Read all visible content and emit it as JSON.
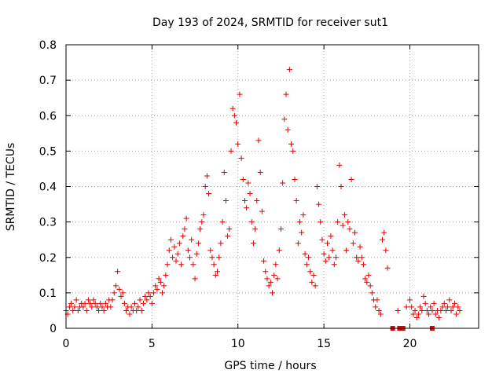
{
  "chart_data": {
    "type": "scatter",
    "title": "Day 193 of 2024, SRMTID for receiver sut1",
    "xlabel": "GPS time / hours",
    "ylabel": "SRMTID / TECUs",
    "xlim": [
      0,
      24
    ],
    "ylim": [
      0,
      0.8
    ],
    "xticks": [
      "0",
      "5",
      "10",
      "15",
      "20"
    ],
    "yticks": [
      "0",
      "0.1",
      "0.2",
      "0.3",
      "0.4",
      "0.5",
      "0.6",
      "0.7",
      "0.8"
    ],
    "grid": true,
    "marker": "plus",
    "color": "#e00000",
    "series": [
      {
        "name": "SRMTID",
        "points": [
          [
            0.0,
            0.05
          ],
          [
            0.1,
            0.04
          ],
          [
            0.2,
            0.06
          ],
          [
            0.3,
            0.07
          ],
          [
            0.4,
            0.05
          ],
          [
            0.5,
            0.06
          ],
          [
            0.6,
            0.08
          ],
          [
            0.7,
            0.05
          ],
          [
            0.8,
            0.06
          ],
          [
            0.9,
            0.07
          ],
          [
            1.0,
            0.06
          ],
          [
            1.1,
            0.07
          ],
          [
            1.2,
            0.05
          ],
          [
            1.3,
            0.08
          ],
          [
            1.4,
            0.07
          ],
          [
            1.5,
            0.06
          ],
          [
            1.6,
            0.08
          ],
          [
            1.7,
            0.07
          ],
          [
            1.8,
            0.06
          ],
          [
            1.9,
            0.05
          ],
          [
            2.0,
            0.07
          ],
          [
            2.1,
            0.06
          ],
          [
            2.2,
            0.05
          ],
          [
            2.3,
            0.07
          ],
          [
            2.4,
            0.06
          ],
          [
            2.5,
            0.08
          ],
          [
            2.6,
            0.06
          ],
          [
            2.7,
            0.08
          ],
          [
            2.8,
            0.1
          ],
          [
            2.9,
            0.12
          ],
          [
            3.0,
            0.16
          ],
          [
            3.1,
            0.11
          ],
          [
            3.2,
            0.09
          ],
          [
            3.3,
            0.1
          ],
          [
            3.4,
            0.07
          ],
          [
            3.5,
            0.05
          ],
          [
            3.6,
            0.06
          ],
          [
            3.7,
            0.04
          ],
          [
            3.8,
            0.06
          ],
          [
            3.9,
            0.05
          ],
          [
            4.0,
            0.07
          ],
          [
            4.1,
            0.05
          ],
          [
            4.2,
            0.06
          ],
          [
            4.3,
            0.08
          ],
          [
            4.4,
            0.05
          ],
          [
            4.5,
            0.07
          ],
          [
            4.6,
            0.09
          ],
          [
            4.7,
            0.08
          ],
          [
            4.8,
            0.1
          ],
          [
            4.9,
            0.09
          ],
          [
            5.0,
            0.07
          ],
          [
            5.1,
            0.1
          ],
          [
            5.2,
            0.12
          ],
          [
            5.3,
            0.11
          ],
          [
            5.4,
            0.14
          ],
          [
            5.5,
            0.13
          ],
          [
            5.6,
            0.1
          ],
          [
            5.7,
            0.12
          ],
          [
            5.8,
            0.15
          ],
          [
            5.9,
            0.18
          ],
          [
            6.0,
            0.22
          ],
          [
            6.1,
            0.25
          ],
          [
            6.2,
            0.2
          ],
          [
            6.3,
            0.23
          ],
          [
            6.4,
            0.19
          ],
          [
            6.5,
            0.21
          ],
          [
            6.6,
            0.24
          ],
          [
            6.7,
            0.18
          ],
          [
            6.8,
            0.26
          ],
          [
            6.9,
            0.28
          ],
          [
            7.0,
            0.31
          ],
          [
            7.1,
            0.22
          ],
          [
            7.2,
            0.2
          ],
          [
            7.3,
            0.25
          ],
          [
            7.4,
            0.18
          ],
          [
            7.5,
            0.14
          ],
          [
            7.6,
            0.21
          ],
          [
            7.7,
            0.24
          ],
          [
            7.8,
            0.28
          ],
          [
            7.9,
            0.3
          ],
          [
            8.0,
            0.32
          ],
          [
            8.1,
            0.4
          ],
          [
            8.2,
            0.43
          ],
          [
            8.3,
            0.38
          ],
          [
            8.4,
            0.22
          ],
          [
            8.5,
            0.2
          ],
          [
            8.6,
            0.18
          ],
          [
            8.7,
            0.15
          ],
          [
            8.8,
            0.16
          ],
          [
            8.9,
            0.2
          ],
          [
            9.0,
            0.24
          ],
          [
            9.1,
            0.3
          ],
          [
            9.2,
            0.44
          ],
          [
            9.3,
            0.36
          ],
          [
            9.4,
            0.26
          ],
          [
            9.5,
            0.28
          ],
          [
            9.6,
            0.5
          ],
          [
            9.7,
            0.62
          ],
          [
            9.8,
            0.6
          ],
          [
            9.9,
            0.58
          ],
          [
            10.0,
            0.52
          ],
          [
            10.1,
            0.66
          ],
          [
            10.2,
            0.48
          ],
          [
            10.3,
            0.42
          ],
          [
            10.4,
            0.36
          ],
          [
            10.5,
            0.34
          ],
          [
            10.6,
            0.41
          ],
          [
            10.7,
            0.38
          ],
          [
            10.8,
            0.3
          ],
          [
            10.9,
            0.24
          ],
          [
            11.0,
            0.28
          ],
          [
            11.1,
            0.36
          ],
          [
            11.2,
            0.53
          ],
          [
            11.3,
            0.44
          ],
          [
            11.4,
            0.33
          ],
          [
            11.5,
            0.19
          ],
          [
            11.6,
            0.16
          ],
          [
            11.7,
            0.14
          ],
          [
            11.8,
            0.12
          ],
          [
            11.9,
            0.13
          ],
          [
            12.0,
            0.1
          ],
          [
            12.1,
            0.15
          ],
          [
            12.2,
            0.18
          ],
          [
            12.3,
            0.14
          ],
          [
            12.4,
            0.22
          ],
          [
            12.5,
            0.28
          ],
          [
            12.6,
            0.41
          ],
          [
            12.7,
            0.59
          ],
          [
            12.8,
            0.66
          ],
          [
            12.9,
            0.56
          ],
          [
            13.0,
            0.73
          ],
          [
            13.1,
            0.52
          ],
          [
            13.2,
            0.5
          ],
          [
            13.3,
            0.42
          ],
          [
            13.4,
            0.36
          ],
          [
            13.5,
            0.24
          ],
          [
            13.6,
            0.3
          ],
          [
            13.7,
            0.27
          ],
          [
            13.8,
            0.32
          ],
          [
            13.9,
            0.21
          ],
          [
            14.0,
            0.18
          ],
          [
            14.1,
            0.2
          ],
          [
            14.2,
            0.16
          ],
          [
            14.3,
            0.13
          ],
          [
            14.4,
            0.15
          ],
          [
            14.5,
            0.12
          ],
          [
            14.6,
            0.4
          ],
          [
            14.7,
            0.35
          ],
          [
            14.8,
            0.3
          ],
          [
            14.9,
            0.25
          ],
          [
            15.0,
            0.21
          ],
          [
            15.1,
            0.19
          ],
          [
            15.2,
            0.24
          ],
          [
            15.3,
            0.2
          ],
          [
            15.4,
            0.26
          ],
          [
            15.5,
            0.22
          ],
          [
            15.6,
            0.18
          ],
          [
            15.7,
            0.2
          ],
          [
            15.8,
            0.3
          ],
          [
            15.9,
            0.46
          ],
          [
            16.0,
            0.4
          ],
          [
            16.1,
            0.29
          ],
          [
            16.2,
            0.32
          ],
          [
            16.3,
            0.22
          ],
          [
            16.4,
            0.3
          ],
          [
            16.5,
            0.28
          ],
          [
            16.6,
            0.42
          ],
          [
            16.7,
            0.24
          ],
          [
            16.8,
            0.27
          ],
          [
            16.9,
            0.2
          ],
          [
            17.0,
            0.19
          ],
          [
            17.1,
            0.23
          ],
          [
            17.2,
            0.2
          ],
          [
            17.3,
            0.18
          ],
          [
            17.4,
            0.14
          ],
          [
            17.5,
            0.13
          ],
          [
            17.6,
            0.15
          ],
          [
            17.7,
            0.12
          ],
          [
            17.8,
            0.1
          ],
          [
            17.9,
            0.08
          ],
          [
            18.0,
            0.06
          ],
          [
            18.1,
            0.08
          ],
          [
            18.2,
            0.05
          ],
          [
            18.3,
            0.04
          ],
          [
            18.4,
            0.25
          ],
          [
            18.5,
            0.27
          ],
          [
            18.6,
            0.22
          ],
          [
            18.7,
            0.17
          ],
          [
            19.3,
            0.05
          ],
          [
            19.8,
            0.06
          ],
          [
            20.0,
            0.08
          ],
          [
            20.1,
            0.06
          ],
          [
            20.2,
            0.04
          ],
          [
            20.3,
            0.05
          ],
          [
            20.4,
            0.03
          ],
          [
            20.5,
            0.04
          ],
          [
            20.6,
            0.06
          ],
          [
            20.7,
            0.05
          ],
          [
            20.8,
            0.09
          ],
          [
            20.9,
            0.07
          ],
          [
            21.0,
            0.05
          ],
          [
            21.1,
            0.04
          ],
          [
            21.2,
            0.06
          ],
          [
            21.3,
            0.05
          ],
          [
            21.4,
            0.07
          ],
          [
            21.5,
            0.04
          ],
          [
            21.6,
            0.05
          ],
          [
            21.7,
            0.03
          ],
          [
            21.8,
            0.05
          ],
          [
            21.9,
            0.06
          ],
          [
            22.0,
            0.07
          ],
          [
            22.1,
            0.05
          ],
          [
            22.2,
            0.06
          ],
          [
            22.3,
            0.08
          ],
          [
            22.4,
            0.05
          ],
          [
            22.5,
            0.06
          ],
          [
            22.6,
            0.07
          ],
          [
            22.7,
            0.04
          ],
          [
            22.8,
            0.06
          ],
          [
            22.9,
            0.05
          ]
        ]
      },
      {
        "name": "zero-value markers",
        "marker": "square",
        "points": [
          [
            19.0,
            0.0
          ],
          [
            19.4,
            0.0
          ],
          [
            19.6,
            0.0
          ],
          [
            21.3,
            0.0
          ]
        ]
      }
    ]
  }
}
